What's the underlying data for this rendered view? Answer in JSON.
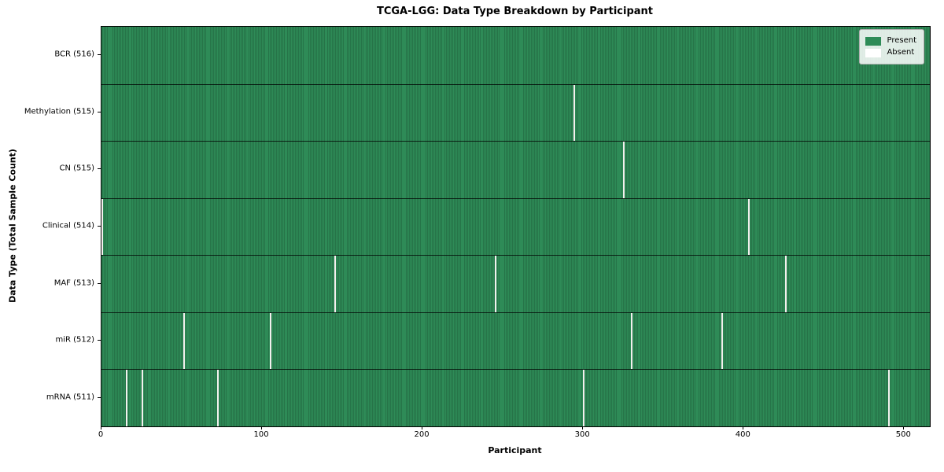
{
  "chart_data": {
    "type": "heatmap",
    "title": "TCGA-LGG: Data Type Breakdown by Participant",
    "xlabel": "Participant",
    "ylabel": "Data Type (Total Sample Count)",
    "n_participants": 516,
    "x_range": [
      0,
      516
    ],
    "x_ticks": [
      0,
      100,
      200,
      300,
      400,
      500
    ],
    "legend": [
      {
        "label": "Present",
        "color": "#2e8b57"
      },
      {
        "label": "Absent",
        "color": "#ffffff"
      }
    ],
    "rows": [
      {
        "label": "BCR (516)",
        "present_count": 516,
        "absent_participants": []
      },
      {
        "label": "Methylation (515)",
        "present_count": 515,
        "absent_participants": [
          294
        ]
      },
      {
        "label": "CN (515)",
        "present_count": 515,
        "absent_participants": [
          325
        ]
      },
      {
        "label": "Clinical (514)",
        "present_count": 514,
        "absent_participants": [
          0,
          403
        ]
      },
      {
        "label": "MAF (513)",
        "present_count": 513,
        "absent_participants": [
          145,
          245,
          426
        ]
      },
      {
        "label": "miR (512)",
        "present_count": 512,
        "absent_participants": [
          51,
          105,
          330,
          386
        ]
      },
      {
        "label": "mRNA (511)",
        "present_count": 511,
        "absent_participants": [
          15,
          25,
          72,
          300,
          490
        ]
      }
    ],
    "colors": {
      "present": "#2e8b57",
      "present_dark": "#1e5c3a",
      "absent_gap": "#f2f1ee",
      "row_separator": "rgba(0,0,0,0.75)"
    }
  }
}
